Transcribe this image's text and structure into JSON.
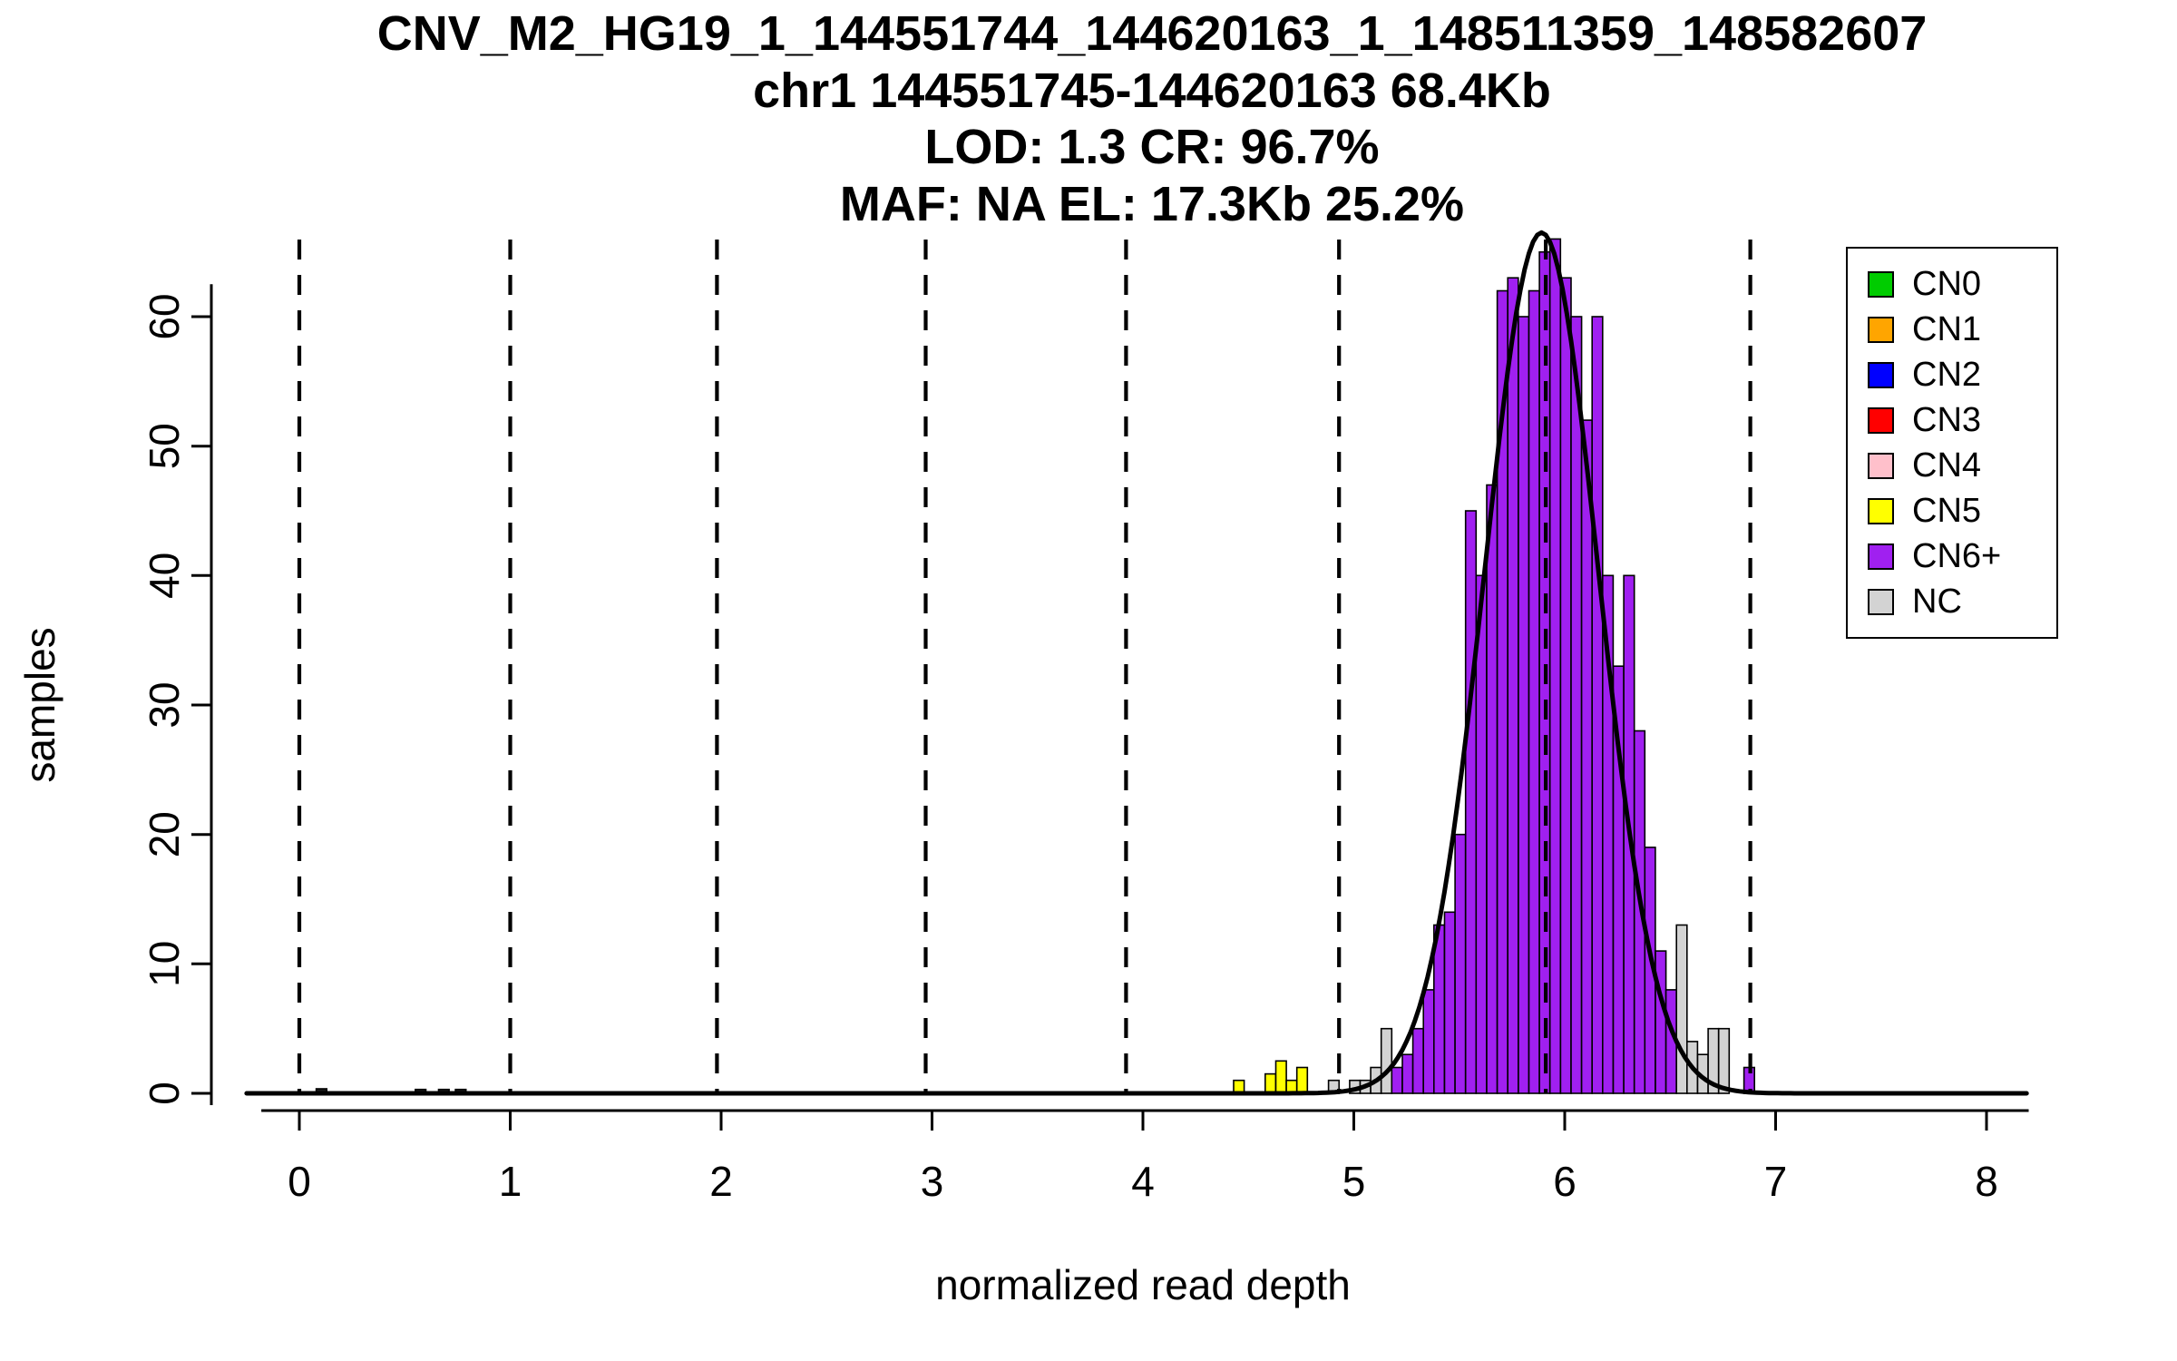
{
  "chart_data": {
    "type": "bar",
    "subtype": "histogram-with-density-curve",
    "title_lines": [
      "CNV_M2_HG19_1_144551744_144620163_1_148511359_148582607",
      "chr1 144551745-144620163 68.4Kb",
      "LOD: 1.3 CR: 96.7%",
      "MAF: NA EL: 17.3Kb 25.2%"
    ],
    "xlabel": "normalized read depth",
    "ylabel": "samples",
    "xlim": [
      -0.25,
      8.2
    ],
    "ylim": [
      0,
      66.5
    ],
    "x_ticks": [
      0,
      1,
      2,
      3,
      4,
      5,
      6,
      7,
      8
    ],
    "y_ticks": [
      0,
      10,
      20,
      30,
      40,
      50,
      60
    ],
    "grid": false,
    "dashed_vlines_x": [
      0,
      1.0,
      1.98,
      2.97,
      3.92,
      4.93,
      5.91,
      6.88
    ],
    "bin_width": 0.05,
    "colors": {
      "CN0": "#00CC00",
      "CN1": "#FFA500",
      "CN2": "#0000FF",
      "CN3": "#FF0000",
      "CN4": "#FFC0CB",
      "CN5": "#FFFF00",
      "CN6": "#A020F0",
      "NC": "#D3D3D3",
      "K": "#1A1A1A"
    },
    "bars": [
      {
        "x": 0.08,
        "h": 0.35,
        "c": "K"
      },
      {
        "x": 0.55,
        "h": 0.3,
        "c": "K"
      },
      {
        "x": 0.66,
        "h": 0.3,
        "c": "K"
      },
      {
        "x": 0.74,
        "h": 0.3,
        "c": "K"
      },
      {
        "x": 4.43,
        "h": 1,
        "c": "CN5"
      },
      {
        "x": 4.58,
        "h": 1.5,
        "c": "CN5"
      },
      {
        "x": 4.63,
        "h": 2.5,
        "c": "CN5"
      },
      {
        "x": 4.68,
        "h": 1,
        "c": "CN5"
      },
      {
        "x": 4.73,
        "h": 2,
        "c": "CN5"
      },
      {
        "x": 4.88,
        "h": 1,
        "c": "NC"
      },
      {
        "x": 4.98,
        "h": 1,
        "c": "NC"
      },
      {
        "x": 5.03,
        "h": 1,
        "c": "NC"
      },
      {
        "x": 5.08,
        "h": 2,
        "c": "NC"
      },
      {
        "x": 5.13,
        "h": 5,
        "c": "NC"
      },
      {
        "x": 5.18,
        "h": 2,
        "c": "CN6"
      },
      {
        "x": 5.23,
        "h": 3,
        "c": "CN6"
      },
      {
        "x": 5.28,
        "h": 5,
        "c": "CN6"
      },
      {
        "x": 5.33,
        "h": 8,
        "c": "CN6"
      },
      {
        "x": 5.38,
        "h": 13,
        "c": "CN6"
      },
      {
        "x": 5.43,
        "h": 14,
        "c": "CN6"
      },
      {
        "x": 5.48,
        "h": 20,
        "c": "CN6"
      },
      {
        "x": 5.53,
        "h": 45,
        "c": "CN6"
      },
      {
        "x": 5.58,
        "h": 40,
        "c": "CN6"
      },
      {
        "x": 5.63,
        "h": 47,
        "c": "CN6"
      },
      {
        "x": 5.68,
        "h": 62,
        "c": "CN6"
      },
      {
        "x": 5.73,
        "h": 63,
        "c": "CN6"
      },
      {
        "x": 5.78,
        "h": 60,
        "c": "CN6"
      },
      {
        "x": 5.83,
        "h": 62,
        "c": "CN6"
      },
      {
        "x": 5.88,
        "h": 65,
        "c": "CN6"
      },
      {
        "x": 5.93,
        "h": 66,
        "c": "CN6"
      },
      {
        "x": 5.98,
        "h": 63,
        "c": "CN6"
      },
      {
        "x": 6.03,
        "h": 60,
        "c": "CN6"
      },
      {
        "x": 6.08,
        "h": 52,
        "c": "CN6"
      },
      {
        "x": 6.13,
        "h": 60,
        "c": "CN6"
      },
      {
        "x": 6.18,
        "h": 40,
        "c": "CN6"
      },
      {
        "x": 6.23,
        "h": 33,
        "c": "CN6"
      },
      {
        "x": 6.28,
        "h": 40,
        "c": "CN6"
      },
      {
        "x": 6.33,
        "h": 28,
        "c": "CN6"
      },
      {
        "x": 6.38,
        "h": 19,
        "c": "CN6"
      },
      {
        "x": 6.43,
        "h": 11,
        "c": "CN6"
      },
      {
        "x": 6.48,
        "h": 8,
        "c": "CN6"
      },
      {
        "x": 6.53,
        "h": 13,
        "c": "NC"
      },
      {
        "x": 6.58,
        "h": 4,
        "c": "NC"
      },
      {
        "x": 6.63,
        "h": 3,
        "c": "NC"
      },
      {
        "x": 6.68,
        "h": 5,
        "c": "NC"
      },
      {
        "x": 6.73,
        "h": 5,
        "c": "NC"
      },
      {
        "x": 6.85,
        "h": 2,
        "c": "CN6"
      }
    ],
    "curve": {
      "shape": "gaussian",
      "mean": 5.89,
      "sd": 0.27,
      "amplitude": 66.5,
      "color": "#000000"
    },
    "legend": {
      "position": "top-right",
      "items": [
        {
          "label": "CN0",
          "color": "#00CC00"
        },
        {
          "label": "CN1",
          "color": "#FFA500"
        },
        {
          "label": "CN2",
          "color": "#0000FF"
        },
        {
          "label": "CN3",
          "color": "#FF0000"
        },
        {
          "label": "CN4",
          "color": "#FFC0CB"
        },
        {
          "label": "CN5",
          "color": "#FFFF00"
        },
        {
          "label": "CN6+",
          "color": "#A020F0"
        },
        {
          "label": "NC",
          "color": "#D3D3D3"
        }
      ]
    }
  }
}
